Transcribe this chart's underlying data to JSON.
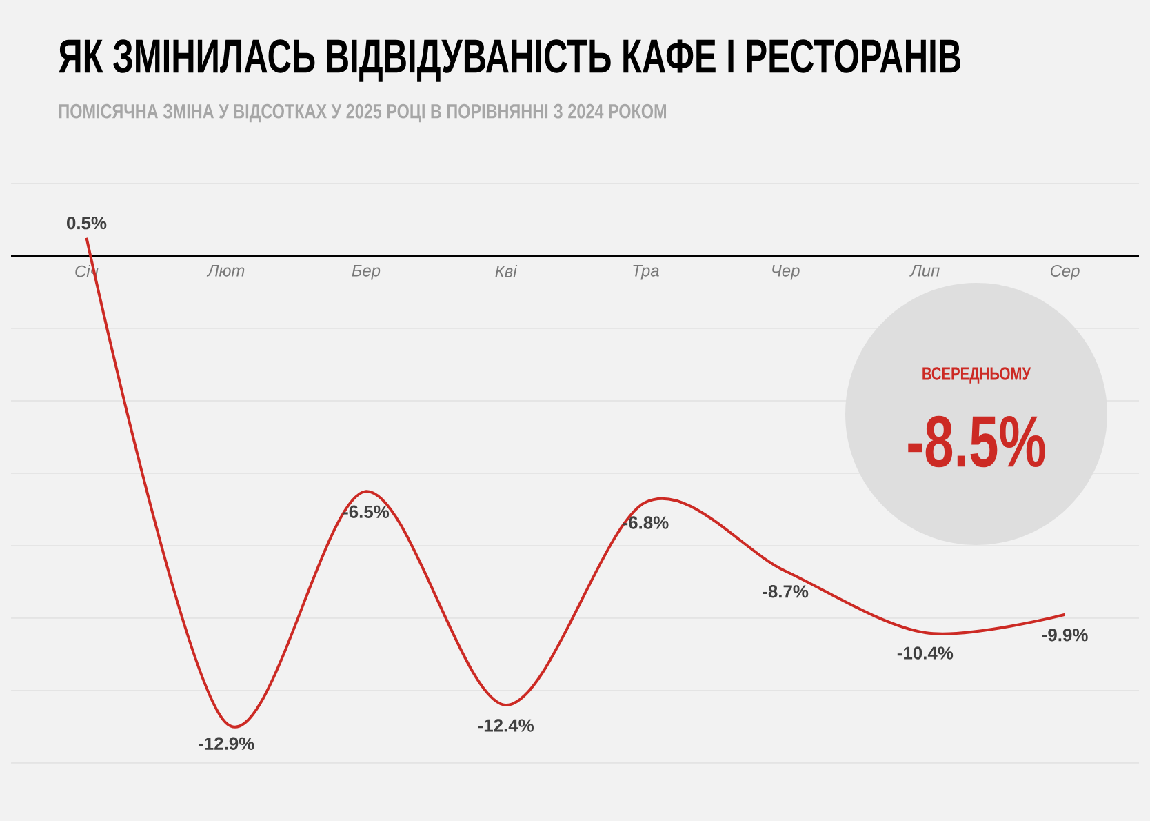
{
  "chart_data": {
    "type": "line",
    "title": "ЯК ЗМІНИЛАСЬ ВІДВІДУВАНІСТЬ КАФЕ І РЕСТОРАНІВ",
    "subtitle": "ПОМІСЯЧНА ЗМІНА У ВІДСОТКАХ У 2025 РОЦІ В ПОРІВНЯННІ З 2024 РОКОМ",
    "categories": [
      "Січ",
      "Лют",
      "Бер",
      "Кві",
      "Тра",
      "Чер",
      "Лип",
      "Сер"
    ],
    "series": [
      {
        "color": "#cc2a24",
        "values": [
          0.5,
          -12.9,
          -6.5,
          -12.4,
          -6.8,
          -8.7,
          -10.4,
          -9.9
        ],
        "value_labels": [
          "0.5%",
          "-12.9%",
          "-6.5%",
          "-12.4%",
          "-6.8%",
          "-8.7%",
          "-10.4%",
          "-9.9%"
        ]
      }
    ],
    "ylim": [
      -14,
      2
    ],
    "yticks": [
      {
        "value": -14,
        "label": null
      },
      {
        "value": -12,
        "label": null
      },
      {
        "value": -10,
        "label": null
      },
      {
        "value": -8,
        "label": null
      },
      {
        "value": -6,
        "label": null
      },
      {
        "value": -4,
        "label": null
      },
      {
        "value": -2,
        "label": null
      },
      {
        "value": 0,
        "label": null
      },
      {
        "value": 2,
        "label": null
      }
    ],
    "grid": "y",
    "tick_labels": "x",
    "annotations": [
      "ВСЕРЕДНЬОМУ",
      "-8.5%"
    ]
  }
}
